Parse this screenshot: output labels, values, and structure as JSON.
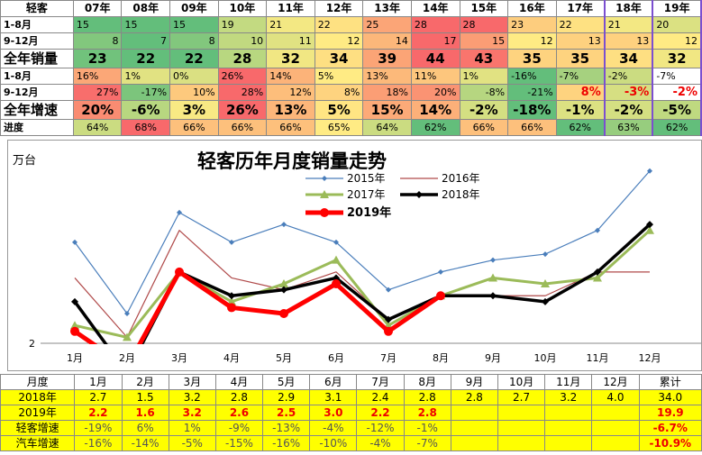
{
  "top_table": {
    "header": [
      "轻客",
      "07年",
      "08年",
      "09年",
      "10年",
      "11年",
      "12年",
      "13年",
      "14年",
      "15年",
      "16年",
      "17年",
      "18年",
      "19年"
    ],
    "rows": [
      [
        "1-8月",
        "15",
        "15",
        "15",
        "19",
        "21",
        "22",
        "25",
        "28",
        "28",
        "23",
        "22",
        "21",
        "20"
      ],
      [
        "9-12月",
        "8",
        "7",
        "8",
        "10",
        "11",
        "12",
        "14",
        "17",
        "15",
        "12",
        "13",
        "13",
        "12"
      ],
      [
        "全年销量",
        "23",
        "22",
        "22",
        "28",
        "32",
        "34",
        "39",
        "44",
        "43",
        "35",
        "35",
        "34",
        "32"
      ],
      [
        "1-8月",
        "16%",
        "1%",
        "0%",
        "26%",
        "14%",
        "5%",
        "13%",
        "11%",
        "1%",
        "-16%",
        "-7%",
        "-2%",
        "-7%"
      ],
      [
        "9-12月",
        "27%",
        "-17%",
        "10%",
        "28%",
        "12%",
        "8%",
        "18%",
        "20%",
        "-8%",
        "-21%",
        "8%",
        "-3%",
        "-2%"
      ],
      [
        "全年增速",
        "20%",
        "-6%",
        "3%",
        "26%",
        "13%",
        "5%",
        "15%",
        "14%",
        "-2%",
        "-18%",
        "-1%",
        "-2%",
        "-5%"
      ],
      [
        "进度",
        "64%",
        "68%",
        "66%",
        "66%",
        "66%",
        "65%",
        "64%",
        "62%",
        "66%",
        "66%",
        "62%",
        "63%",
        "62%"
      ]
    ]
  },
  "chart_data": {
    "type": "line",
    "title": "轻客历年月度销量走势",
    "y_label": "万台",
    "categories": [
      "1月",
      "2月",
      "3月",
      "4月",
      "5月",
      "6月",
      "7月",
      "8月",
      "9月",
      "10月",
      "11月",
      "12月"
    ],
    "ylim": [
      2,
      5.26
    ],
    "yticks": [
      2
    ],
    "series": [
      {
        "name": "2015年",
        "color": "#4a7ebb",
        "values": [
          3.7,
          2.5,
          4.2,
          3.7,
          4.0,
          3.7,
          2.9,
          3.2,
          3.4,
          3.5,
          3.9,
          4.9
        ]
      },
      {
        "name": "2016年",
        "color": "#b04a4a",
        "values": [
          3.1,
          2.1,
          3.9,
          3.1,
          2.9,
          3.2,
          2.4,
          2.8,
          2.8,
          2.8,
          3.2,
          3.2
        ]
      },
      {
        "name": "2017年",
        "color": "#9bbb59",
        "values": [
          2.3,
          2.1,
          3.2,
          2.7,
          3.0,
          3.4,
          2.3,
          2.8,
          3.1,
          3.0,
          3.1,
          3.9
        ]
      },
      {
        "name": "2018年",
        "color": "#000000",
        "values": [
          2.7,
          1.5,
          3.2,
          2.8,
          2.9,
          3.1,
          2.4,
          2.8,
          2.8,
          2.7,
          3.2,
          4.0
        ]
      },
      {
        "name": "2019年",
        "color": "#ff0000",
        "values": [
          2.2,
          1.6,
          3.2,
          2.6,
          2.5,
          3.0,
          2.2,
          2.8,
          null,
          null,
          null,
          null
        ]
      }
    ]
  },
  "bottom_table": {
    "header": [
      "月度",
      "1月",
      "2月",
      "3月",
      "4月",
      "5月",
      "6月",
      "7月",
      "8月",
      "9月",
      "10月",
      "11月",
      "12月",
      "累计"
    ],
    "rows": [
      [
        "2018年",
        "2.7",
        "1.5",
        "3.2",
        "2.8",
        "2.9",
        "3.1",
        "2.4",
        "2.8",
        "2.8",
        "2.7",
        "3.2",
        "4.0",
        "34.0"
      ],
      [
        "2019年",
        "2.2",
        "1.6",
        "3.2",
        "2.6",
        "2.5",
        "3.0",
        "2.2",
        "2.8",
        null,
        null,
        null,
        null,
        "19.9"
      ],
      [
        "轻客增速",
        "-19%",
        "6%",
        "1%",
        "-9%",
        "-13%",
        "-4%",
        "-12%",
        "-1%",
        null,
        null,
        null,
        null,
        "-6.7%"
      ],
      [
        "汽车增速",
        "-16%",
        "-14%",
        "-5%",
        "-15%",
        "-16%",
        "-10%",
        "-4%",
        "-7%",
        null,
        null,
        null,
        null,
        "-10.9%"
      ]
    ]
  }
}
